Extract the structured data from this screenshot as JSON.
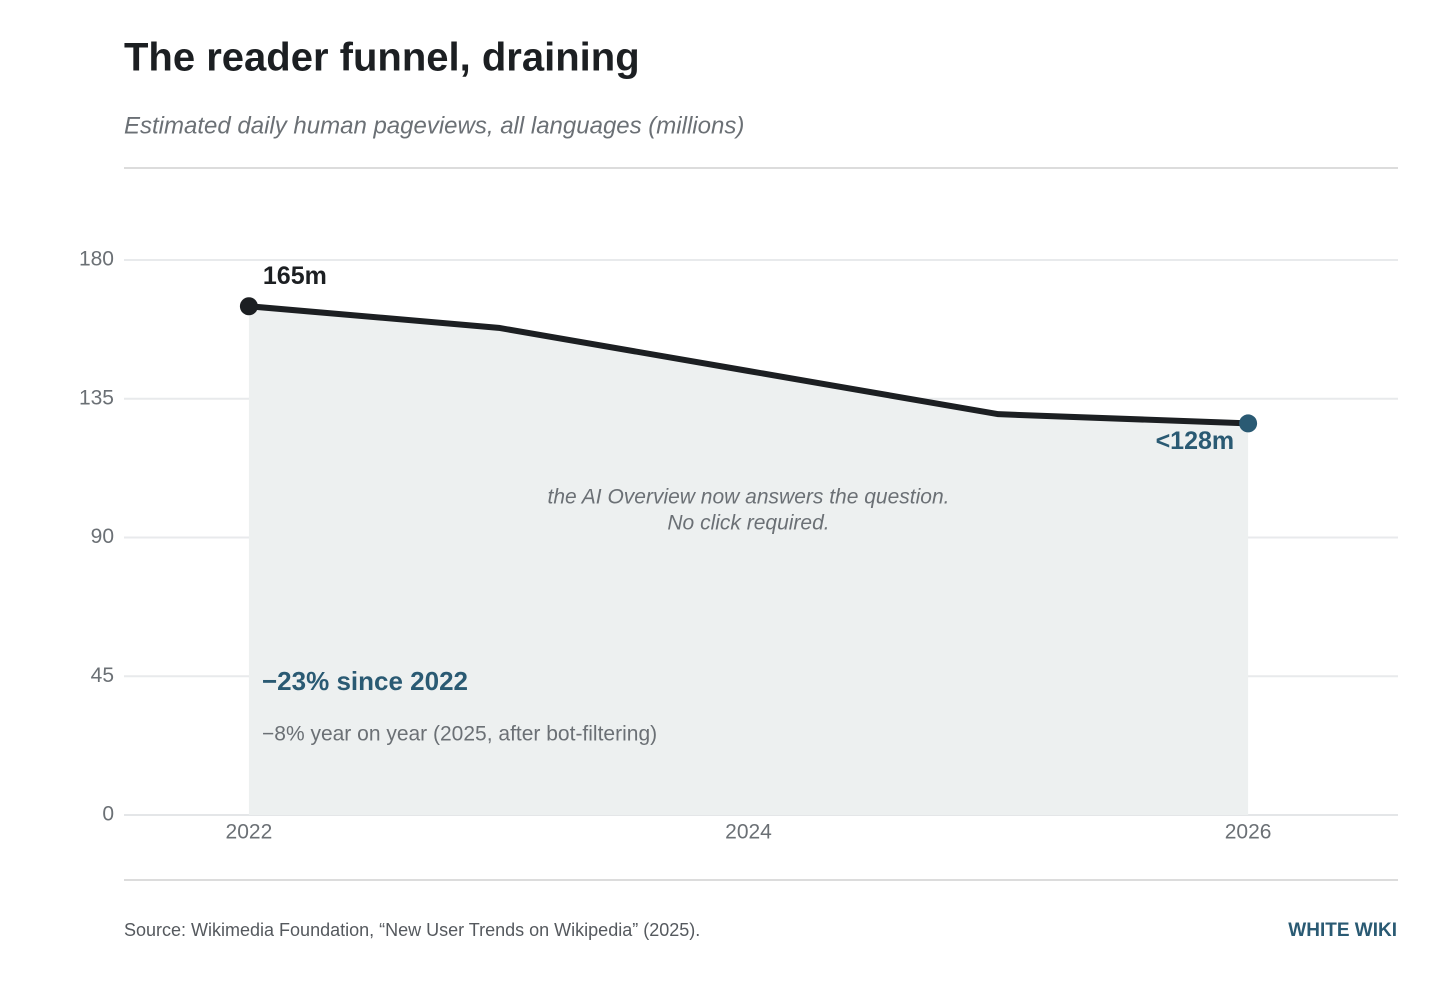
{
  "chart_data": {
    "type": "area",
    "title": "The reader funnel, draining",
    "subtitle": "Estimated daily human pageviews, all languages (millions)",
    "x": [
      2022,
      2023,
      2024,
      2025,
      2026
    ],
    "values": [
      165,
      158,
      144,
      130,
      127
    ],
    "value_labels": [
      "165m",
      null,
      null,
      null,
      "<128m"
    ],
    "color": "#1c1f22",
    "area_color": "#edf0f0",
    "highlight_color": "#2a5a73",
    "xlim": [
      2021.5,
      2026.6
    ],
    "xticks": [
      2022,
      2024,
      2026
    ],
    "ylim": [
      0,
      180
    ],
    "yticks": [
      0,
      45,
      90,
      135,
      180
    ],
    "grid": true,
    "annotations": [
      "the AI Overview now answers the question.",
      "No click required.",
      "−23% since 2022",
      "−8% year on year (2025, after bot-filtering)"
    ],
    "source": "Source: Wikimedia Foundation, “New User Trends on Wikipedia” (2025).",
    "brand": "WHITE WIKI"
  }
}
